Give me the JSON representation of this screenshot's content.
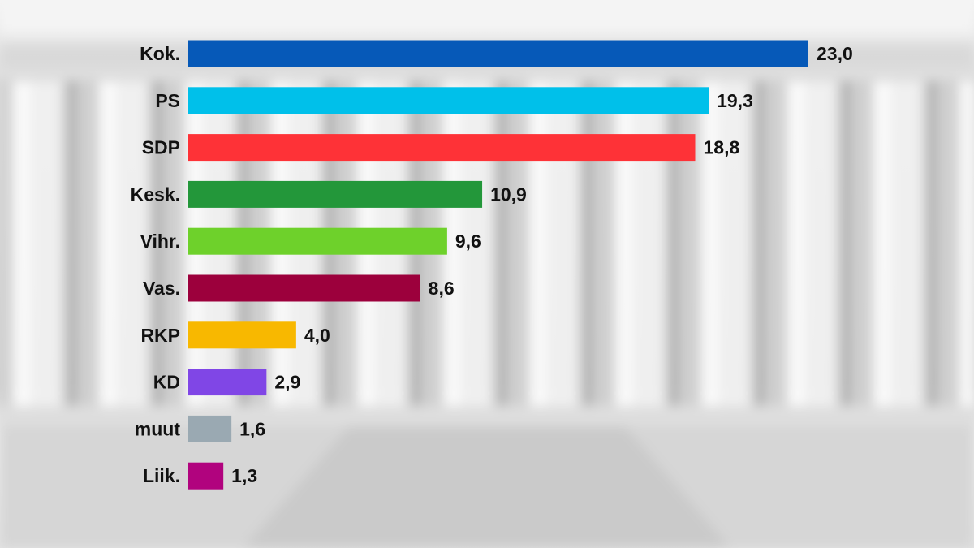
{
  "chart_data": {
    "type": "bar",
    "orientation": "horizontal",
    "title": "",
    "xlabel": "",
    "ylabel": "",
    "grid": false,
    "xlim": [
      0,
      23.0
    ],
    "categories": [
      "Kok.",
      "PS",
      "SDP",
      "Kesk.",
      "Vihr.",
      "Vas.",
      "RKP",
      "KD",
      "muut",
      "Liik."
    ],
    "values": [
      23.0,
      19.3,
      18.8,
      10.9,
      9.6,
      8.6,
      4.0,
      2.9,
      1.6,
      1.3
    ],
    "value_labels": [
      "23,0",
      "19,3",
      "18,8",
      "10,9",
      "9,6",
      "8,6",
      "4,0",
      "2,9",
      "1,6",
      "1,3"
    ],
    "colors": [
      "#0659b8",
      "#00c0ea",
      "#fe3237",
      "#23973a",
      "#6ed12b",
      "#9c003c",
      "#f8b800",
      "#8046e6",
      "#9aa9b2",
      "#b1037e"
    ]
  }
}
